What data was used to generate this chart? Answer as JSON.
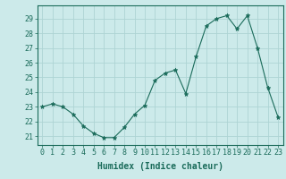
{
  "x": [
    0,
    1,
    2,
    3,
    4,
    5,
    6,
    7,
    8,
    9,
    10,
    11,
    12,
    13,
    14,
    15,
    16,
    17,
    18,
    19,
    20,
    21,
    22,
    23
  ],
  "y": [
    23.0,
    23.2,
    23.0,
    22.5,
    21.7,
    21.2,
    20.9,
    20.9,
    21.6,
    22.5,
    23.1,
    24.8,
    25.3,
    25.5,
    23.9,
    26.4,
    28.5,
    29.0,
    29.2,
    28.3,
    29.2,
    27.0,
    24.3,
    22.3
  ],
  "line_color": "#1a6b5a",
  "marker": "*",
  "marker_color": "#1a6b5a",
  "bg_color": "#cceaea",
  "grid_color": "#aed4d4",
  "xlabel": "Humidex (Indice chaleur)",
  "ylabel_ticks": [
    21,
    22,
    23,
    24,
    25,
    26,
    27,
    28,
    29
  ],
  "ylim": [
    20.4,
    29.9
  ],
  "xlim": [
    -0.5,
    23.5
  ],
  "xlabel_color": "#1a6b5a",
  "tick_color": "#1a6b5a",
  "axis_color": "#1a6b5a",
  "font_size_label": 7,
  "font_size_tick": 6
}
